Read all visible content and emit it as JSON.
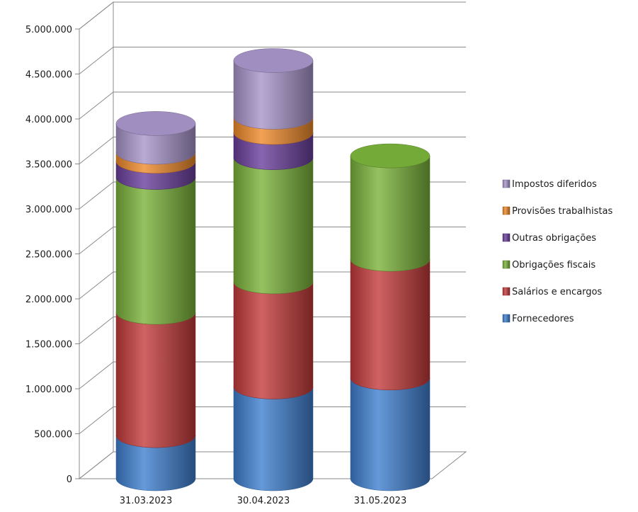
{
  "chart_data": {
    "type": "bar",
    "subtype": "stacked-3d-cylinder",
    "title": "",
    "xlabel": "",
    "ylabel": "",
    "categories": [
      "31.03.2023",
      "30.04.2023",
      "31.05.2023"
    ],
    "ylim": [
      0,
      5000000
    ],
    "yticks": [
      0,
      500000,
      1000000,
      1500000,
      2000000,
      2500000,
      3000000,
      3500000,
      4000000,
      4500000,
      5000000
    ],
    "ytick_labels": [
      "0",
      "500.000",
      "1.000.000",
      "1.500.000",
      "2.000.000",
      "2.500.000",
      "3.000.000",
      "3.500.000",
      "4.000.000",
      "4.500.000",
      "5.000.000"
    ],
    "grid": true,
    "legend_position": "right",
    "series": [
      {
        "name": "Fornecedores",
        "color": "#3f7fcf",
        "values": [
          480000,
          1020000,
          1120000
        ]
      },
      {
        "name": "Salários e encargos",
        "color": "#c43b3b",
        "values": [
          1370000,
          1170000,
          1320000
        ]
      },
      {
        "name": "Obrigações fiscais",
        "color": "#7ab33a",
        "values": [
          1500000,
          1380000,
          1150000
        ]
      },
      {
        "name": "Outras obrigações",
        "color": "#6a3f9c",
        "values": [
          180000,
          280000,
          0
        ]
      },
      {
        "name": "Provisões trabalhistas",
        "color": "#ef8a2a",
        "values": [
          100000,
          170000,
          0
        ]
      },
      {
        "name": "Impostos diferidos",
        "color": "#a795c9",
        "values": [
          320000,
          630000,
          0
        ]
      }
    ]
  }
}
